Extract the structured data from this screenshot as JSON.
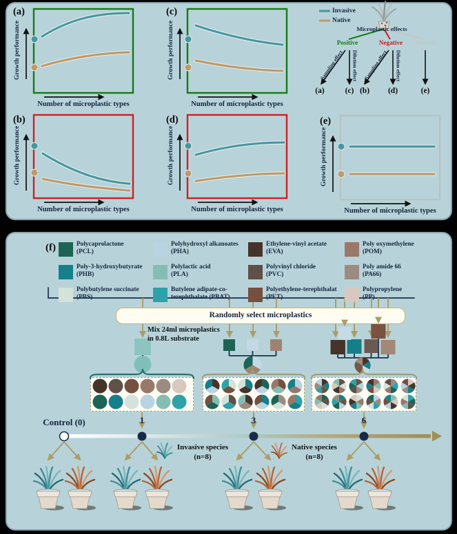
{
  "figure": {
    "colors": {
      "panel_bg": "#b7d3d9",
      "panel_border": "#8aa5ac",
      "invasive_teal": "#4697a1",
      "native_tan": "#bf9a68",
      "positive_green": "#157a15",
      "negative_red": "#d01818",
      "neutral_gray": "#bdc9c9",
      "navy_text": "#16233f",
      "gold": "#ab9d66",
      "line_navy": "#1b2f4e",
      "green_frame": "#157a15",
      "red_frame": "#cf2020",
      "gray_frame": "#b9c2c2"
    },
    "top": {
      "axis_x": "Number of microplastic types",
      "axis_y": "Growth performance",
      "legend": [
        {
          "label": "Invasive",
          "color": "#4697a1"
        },
        {
          "label": "Native",
          "color": "#bf9a68"
        }
      ],
      "charts": [
        {
          "letter": "(a)",
          "border": "green",
          "trend": "increase-saturating"
        },
        {
          "letter": "(c)",
          "border": "green",
          "trend": "decrease-decelerating"
        },
        {
          "letter": "(b)",
          "border": "red",
          "trend": "decrease-steep"
        },
        {
          "letter": "(d)",
          "border": "red",
          "trend": "increase-slight"
        },
        {
          "letter": "(e)",
          "border": "gray",
          "trend": "flat"
        }
      ],
      "tree": {
        "root": "Microplastic effects",
        "branches": [
          {
            "label": "Positive",
            "links": [
              {
                "text": "Sampling effect",
                "target": "(a)"
              },
              {
                "text": "Dilution effect",
                "target": "(c)"
              }
            ]
          },
          {
            "label": "Negative",
            "links": [
              {
                "text": "Sampling effect",
                "target": "(b)"
              },
              {
                "text": "Dilution effect",
                "target": "(d)"
              }
            ]
          },
          {
            "label": "Neutral",
            "links": [
              {
                "text": "",
                "target": "(e)"
              }
            ]
          }
        ]
      }
    },
    "bottom": {
      "letter": "(f)",
      "plastics": [
        {
          "lines": [
            "Polycaprolactone",
            "(PCL)"
          ],
          "color": "#1d6456"
        },
        {
          "lines": [
            "Poly-3-hydroxybutyrate",
            "(PHB)"
          ],
          "color": "#15808a"
        },
        {
          "lines": [
            "Polybutylene succinate",
            "(PBS)"
          ],
          "color": "#d4e3da"
        },
        {
          "lines": [
            "Polyhydroxyl alkanoates",
            "(PHA)"
          ],
          "color": "#b8d3e1"
        },
        {
          "lines": [
            "Polylactic acid",
            "(PLA)"
          ],
          "color": "#85bdb4"
        },
        {
          "lines": [
            "Butylene adipate-co-",
            "terephthalate (PBAT)"
          ],
          "color": "#2da2a8"
        },
        {
          "lines": [
            "Ethylene-vinyl acetate",
            "(EVA)"
          ],
          "color": "#46342a"
        },
        {
          "lines": [
            "Polyvinyl chloride",
            "(PVC)"
          ],
          "color": "#5f5048"
        },
        {
          "lines": [
            "Polyethylene-terephthalat",
            "(PET)"
          ],
          "color": "#75503e"
        },
        {
          "lines": [
            "Poly oxymethylene",
            "(POM)"
          ],
          "color": "#99786a"
        },
        {
          "lines": [
            "Poly amide 66",
            "(PA66)"
          ],
          "color": "#9c8b81"
        },
        {
          "lines": [
            "Polypropylene",
            "(PP)"
          ],
          "color": "#d8c8c0"
        }
      ],
      "select_label": "Randomly select microplastics",
      "mix_lines": [
        "Mix 24ml microplastics",
        "in 0.8L substrate"
      ],
      "timeline": {
        "control_label": "Control (0)",
        "ticks": [
          "1",
          "3",
          "6"
        ]
      },
      "species": [
        {
          "label": "Invasive species",
          "count": "(n=8)"
        },
        {
          "label": "Native species",
          "count": "(n=8)"
        }
      ]
    }
  }
}
